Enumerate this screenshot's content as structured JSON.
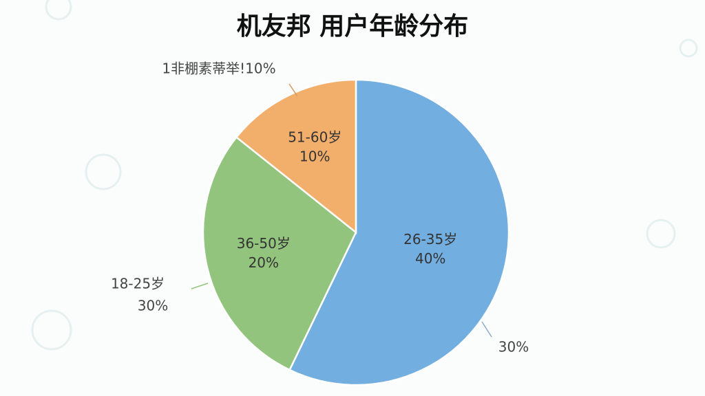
{
  "chart_data": {
    "type": "pie",
    "title": "机友邦  用户年龄分布",
    "categories": [
      "26-35岁",
      "36-50岁",
      "51-60岁"
    ],
    "values": [
      40,
      20,
      10
    ],
    "value_labels": [
      "40%",
      "20%",
      "10%"
    ],
    "colors": [
      "#72aee0",
      "#93c47d",
      "#f2ae6b"
    ],
    "annotations": [
      {
        "text": "1非棚素蒂举!10%"
      },
      {
        "text": "18-25岁"
      },
      {
        "text": "30%"
      },
      {
        "text": "30%"
      }
    ]
  }
}
